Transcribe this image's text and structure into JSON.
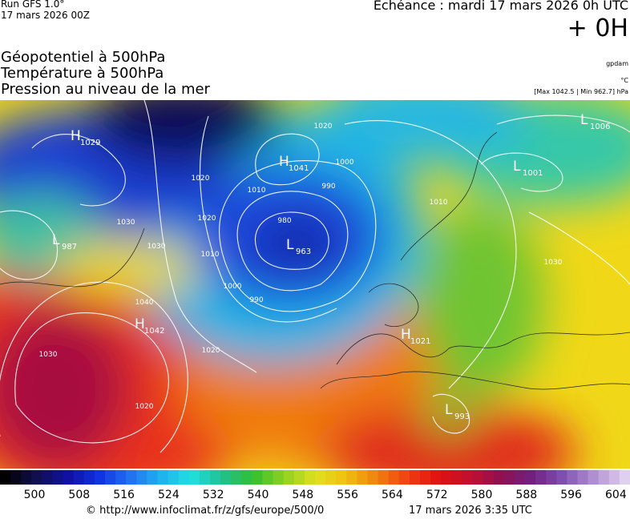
{
  "header": {
    "run": "Run GFS 1.0°",
    "run_date": "17 mars 2026 00Z",
    "forecast": "Echéance : mardi 17 mars 2026 0h UTC",
    "lead": "+ 0H",
    "fields": [
      "Géopotentiel à 500hPa",
      "Température à 500hPa",
      "Pression au niveau de la mer"
    ],
    "units": [
      "gpdam",
      "°C",
      "[Max 1042.5 | Min 962.7] hPa"
    ]
  },
  "map": {
    "pressure_centers": [
      {
        "letter": "H",
        "value": "1029"
      },
      {
        "letter": "L",
        "value": "987"
      },
      {
        "letter": "H",
        "value": "1042"
      },
      {
        "letter": "H",
        "value": "1041"
      },
      {
        "letter": "L",
        "value": "963"
      },
      {
        "letter": "L",
        "value": "1006"
      },
      {
        "letter": "L",
        "value": "1001"
      },
      {
        "letter": "L",
        "value": "993"
      },
      {
        "letter": "H",
        "value": "1021"
      }
    ],
    "isobar_labels": [
      "1020",
      "1020",
      "1030",
      "1040",
      "1030",
      "1030",
      "1020",
      "1010",
      "1020",
      "1010",
      "1000",
      "990",
      "980",
      "990",
      "1000",
      "1010",
      "1020",
      "1030"
    ]
  },
  "colorbar": {
    "labels": [
      "500",
      "508",
      "516",
      "524",
      "532",
      "540",
      "548",
      "556",
      "564",
      "572",
      "580",
      "588",
      "596",
      "604"
    ]
  },
  "footer": {
    "source": "© http://www.infoclimat.fr/z/gfs/europe/500/0",
    "timestamp": "17 mars 2026  3:35 UTC"
  }
}
